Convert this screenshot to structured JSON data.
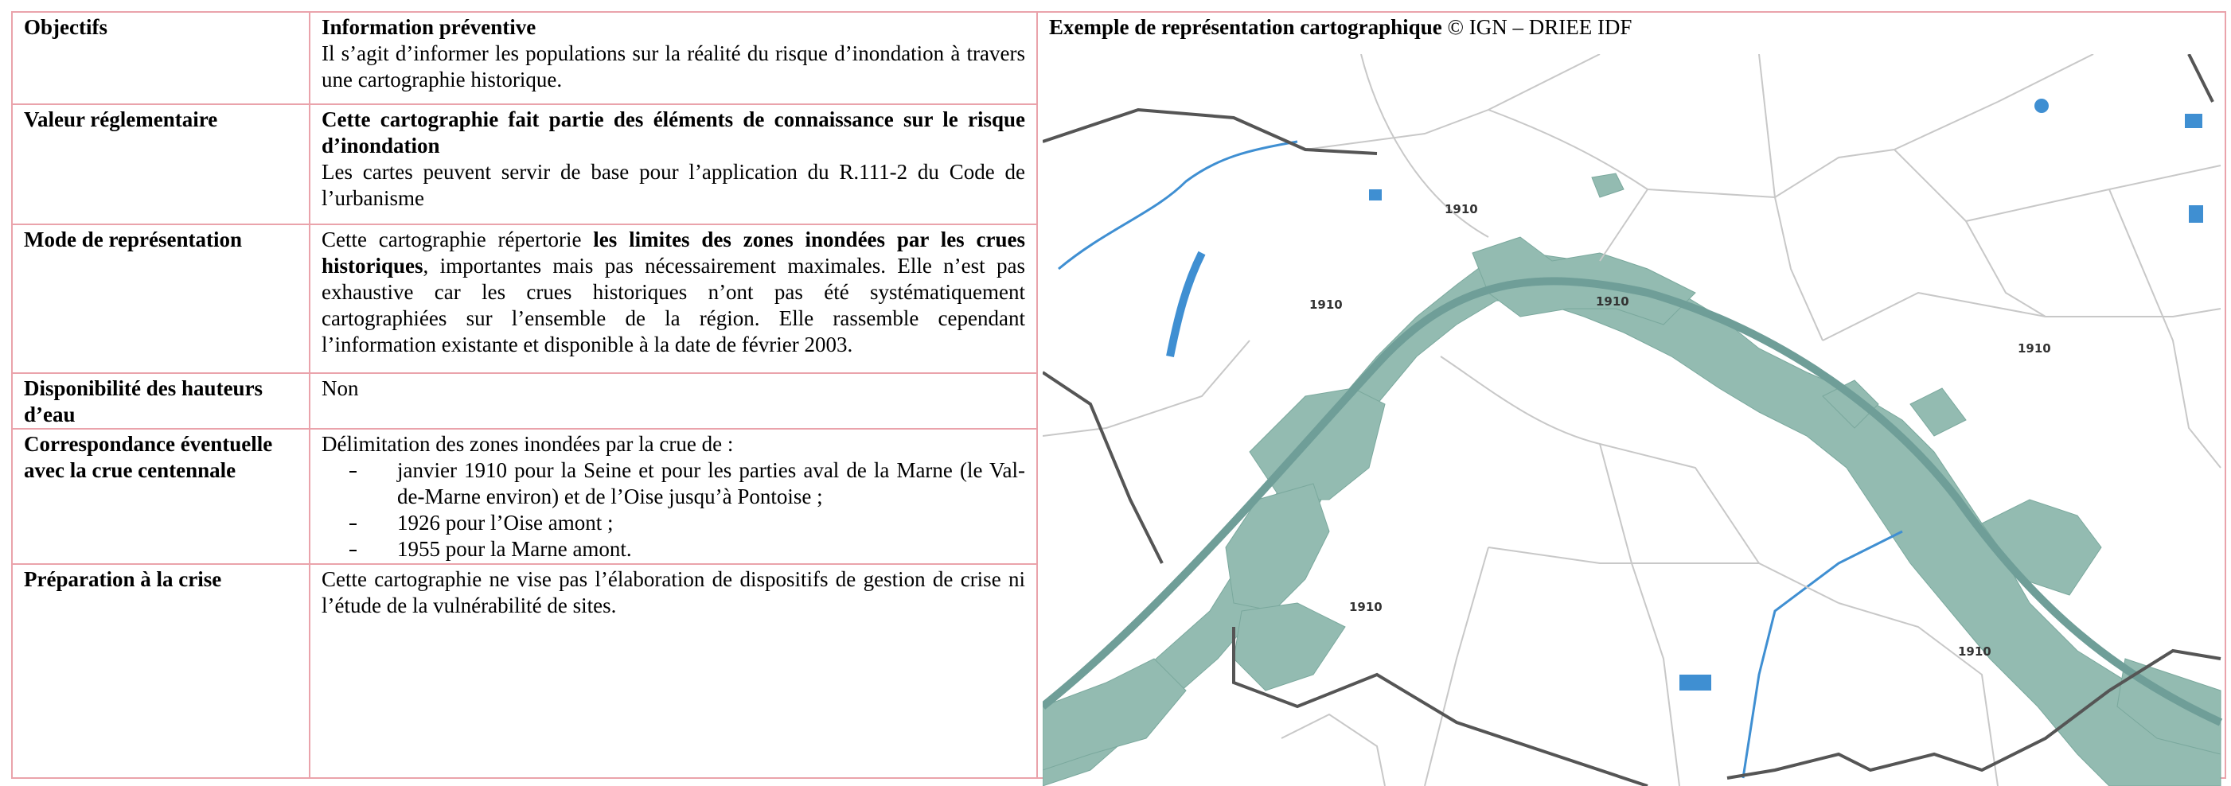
{
  "table": {
    "rows": [
      {
        "label": "Objectifs",
        "title": "Information préventive",
        "text": "Il s’agit d’informer les populations sur la réalité du risque d’inondation à travers une cartographie historique."
      },
      {
        "label": "Valeur réglementaire",
        "title": "Cette cartographie fait partie des éléments de connaissance sur le risque d’inondation",
        "text": "Les cartes peuvent servir de base pour l’application du R.111-2 du Code de l’urbanisme"
      },
      {
        "label": "Mode de représentation",
        "parts": [
          "Cette cartographie répertorie ",
          "les limites des zones inondées par les crues historiques",
          ", importantes mais pas nécessairement maximales. Elle n’est pas exhaustive car les crues historiques n’ont pas été systématiquement cartographiées sur l’ensemble de la région. Elle rassemble cependant l’information existante et disponible à la date de février 2003."
        ]
      },
      {
        "label": "Disponibilité des hauteurs d’eau",
        "text": "Non"
      },
      {
        "label": "Correspondance éventuelle avec la crue centennale",
        "text": "Délimitation des zones inondées par la crue de :",
        "items": [
          "janvier 1910 pour la Seine et pour les parties aval de la Marne (le Val-de-Marne environ) et de l’Oise jusqu’à Pontoise ;",
          "1926 pour l’Oise amont ;",
          "1955 pour la Marne amont."
        ]
      },
      {
        "label": "Préparation à la crise",
        "text": "Cette cartographie ne vise pas l’élaboration de dispositifs de gestion de crise ni l’étude de la vulnérabilité de sites."
      }
    ]
  },
  "map": {
    "caption_title": "Exemple de représentation cartographique",
    "caption_credit": "© IGN – DRIEE IDF",
    "labels": [
      "1910",
      "1910",
      "1910",
      "1910",
      "1910",
      "1910"
    ]
  }
}
